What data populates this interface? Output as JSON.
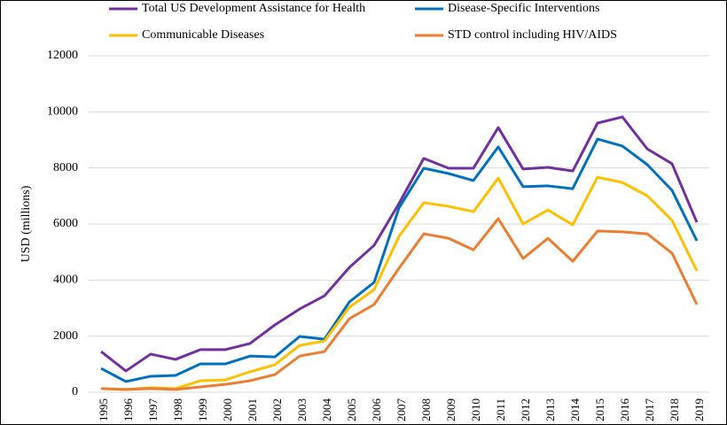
{
  "chart_data": {
    "type": "line",
    "y_label": "USD (millions)",
    "categories": [
      "1995",
      "1996",
      "1997",
      "1998",
      "1999",
      "2000",
      "2001",
      "2002",
      "2003",
      "2004",
      "2005",
      "2006",
      "2007",
      "2008",
      "2009",
      "2010",
      "2011",
      "2012",
      "2013",
      "2014",
      "2015",
      "2016",
      "2017",
      "2018",
      "2019"
    ],
    "series": [
      {
        "name": "Total US Development Assistance for Health",
        "color": "#7030a0",
        "values": [
          1450,
          760,
          1360,
          1170,
          1520,
          1520,
          1740,
          2400,
          2970,
          3440,
          4450,
          5240,
          6730,
          8340,
          7990,
          7990,
          9440,
          7960,
          8020,
          7890,
          9600,
          9820,
          8680,
          8150,
          6060
        ]
      },
      {
        "name": "Disease-Specific Interventions",
        "color": "#0070c0",
        "values": [
          850,
          380,
          570,
          600,
          1010,
          1010,
          1290,
          1260,
          1990,
          1890,
          3220,
          3920,
          6570,
          7990,
          7800,
          7550,
          8750,
          7330,
          7360,
          7260,
          9030,
          8780,
          8120,
          7200,
          5400
        ]
      },
      {
        "name": "Communicable Diseases",
        "color": "#ffc000",
        "values": [
          130,
          100,
          160,
          130,
          410,
          440,
          730,
          980,
          1670,
          1830,
          3030,
          3660,
          5560,
          6760,
          6630,
          6440,
          7640,
          6000,
          6500,
          5970,
          7670,
          7480,
          7010,
          6130,
          4330
        ]
      },
      {
        "name": "STD control including HIV/AIDS",
        "color": "#ed7d31",
        "values": [
          130,
          100,
          130,
          100,
          190,
          280,
          410,
          630,
          1290,
          1450,
          2620,
          3130,
          4420,
          5650,
          5490,
          5080,
          6190,
          4770,
          5490,
          4670,
          5750,
          5720,
          5650,
          4960,
          3130
        ]
      }
    ],
    "ylim": [
      0,
      12000
    ],
    "yticks": [
      0,
      2000,
      4000,
      6000,
      8000,
      10000,
      12000
    ],
    "grid": true
  }
}
